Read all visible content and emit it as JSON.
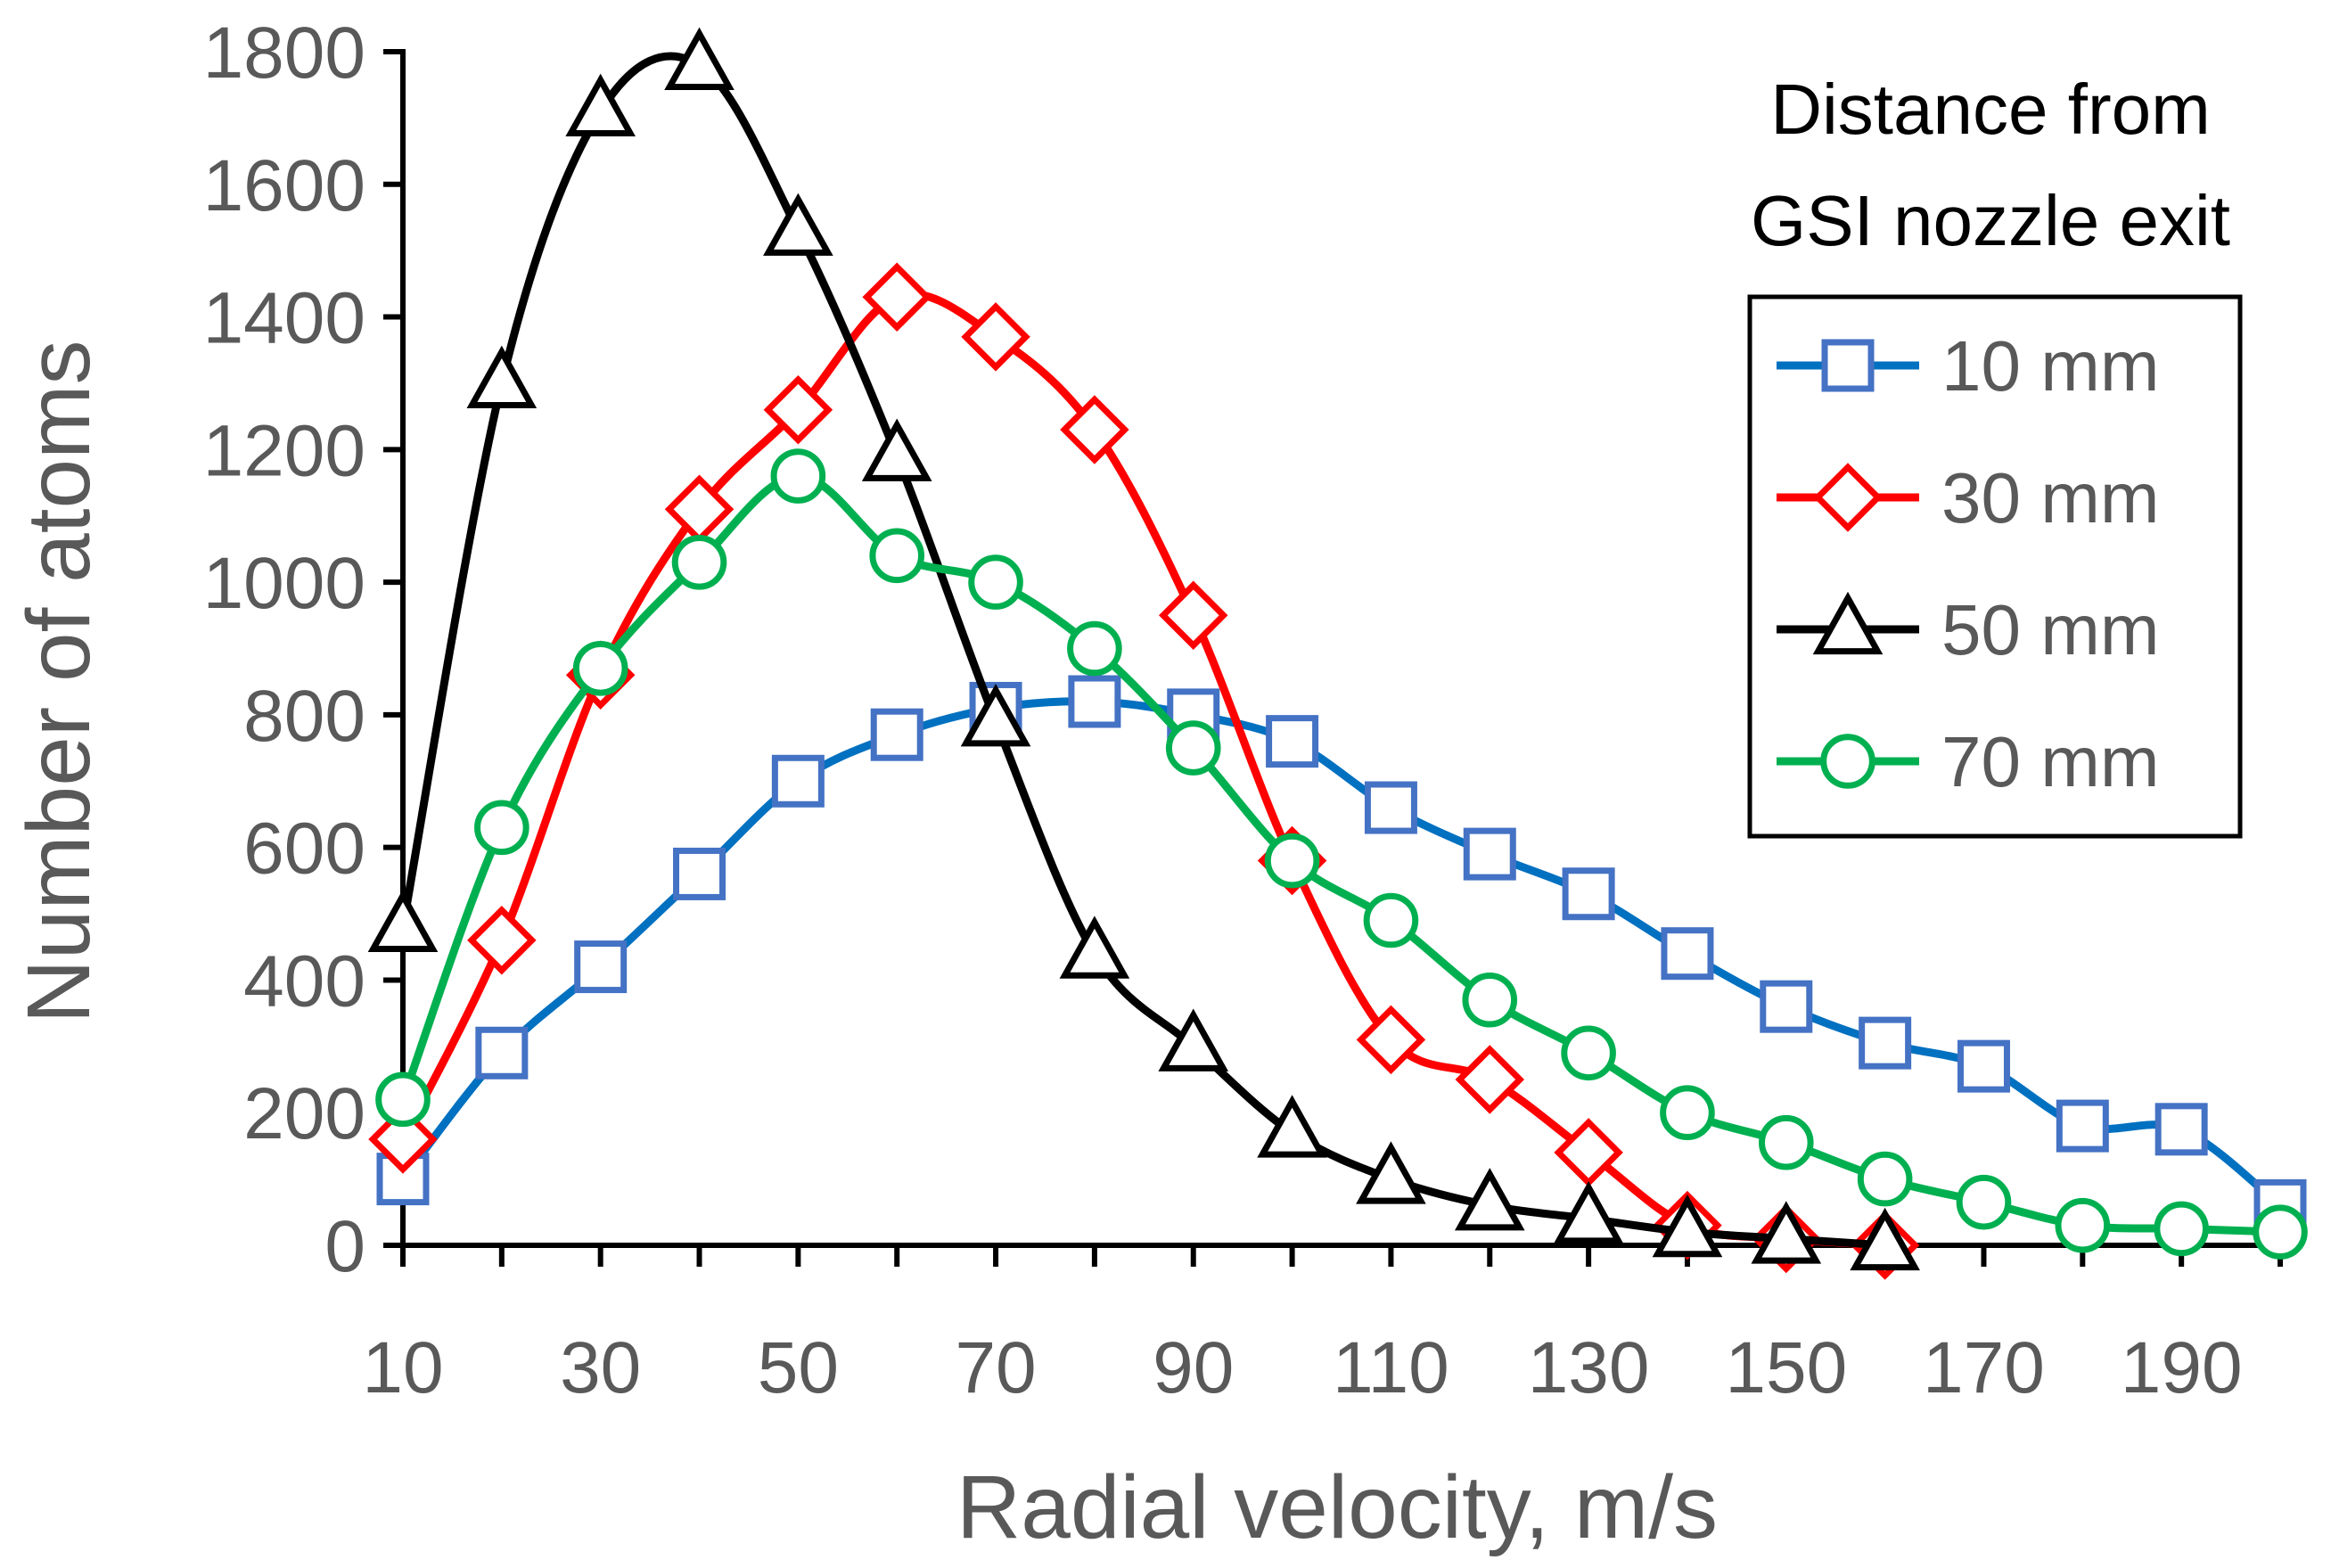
{
  "chart_data": {
    "type": "line",
    "xlabel": "Radial velocity, m/s",
    "ylabel": "Number of atoms",
    "xlim": [
      10,
      200
    ],
    "ylim": [
      0,
      1800
    ],
    "x_ticks": [
      10,
      30,
      50,
      70,
      90,
      110,
      130,
      150,
      170,
      190
    ],
    "y_ticks": [
      0,
      200,
      400,
      600,
      800,
      1000,
      1200,
      1400,
      1600,
      1800
    ],
    "grid": false,
    "smooth": true,
    "legend": {
      "title_lines": [
        "Distance from",
        "GSI nozzle exit"
      ],
      "placement": "top-right"
    },
    "series": [
      {
        "name": "10 mm",
        "color": "#0070C0",
        "marker_color": "#4472C4",
        "marker": "square",
        "x": [
          10,
          20,
          30,
          40,
          50,
          60,
          70,
          80,
          90,
          100,
          110,
          120,
          130,
          140,
          150,
          160,
          170,
          180,
          190,
          200
        ],
        "y": [
          100,
          290,
          420,
          560,
          700,
          770,
          810,
          820,
          800,
          760,
          660,
          590,
          530,
          440,
          360,
          305,
          270,
          180,
          175,
          60
        ]
      },
      {
        "name": "30 mm",
        "color": "#FF0000",
        "marker_color": "#FF0000",
        "marker": "diamond",
        "x": [
          10,
          20,
          30,
          40,
          50,
          60,
          70,
          80,
          90,
          100,
          110,
          120,
          130,
          140,
          150,
          160
        ],
        "y": [
          160,
          460,
          860,
          1110,
          1260,
          1430,
          1370,
          1230,
          950,
          580,
          310,
          250,
          140,
          30,
          10,
          0
        ]
      },
      {
        "name": "50 mm",
        "color": "#000000",
        "marker_color": "#000000",
        "marker": "triangle",
        "x": [
          10,
          20,
          30,
          40,
          50,
          60,
          70,
          80,
          90,
          100,
          110,
          120,
          130,
          140,
          150,
          160
        ],
        "y": [
          480,
          1300,
          1710,
          1780,
          1530,
          1190,
          790,
          440,
          300,
          170,
          100,
          60,
          40,
          20,
          10,
          0
        ]
      },
      {
        "name": "70 mm",
        "color": "#00B050",
        "marker_color": "#00B050",
        "marker": "circle",
        "x": [
          10,
          20,
          30,
          40,
          50,
          60,
          70,
          80,
          90,
          100,
          110,
          120,
          130,
          140,
          150,
          160,
          170,
          180,
          190,
          200
        ],
        "y": [
          220,
          630,
          870,
          1030,
          1160,
          1040,
          1000,
          900,
          750,
          580,
          490,
          370,
          290,
          200,
          155,
          100,
          65,
          30,
          25,
          20
        ]
      }
    ]
  }
}
